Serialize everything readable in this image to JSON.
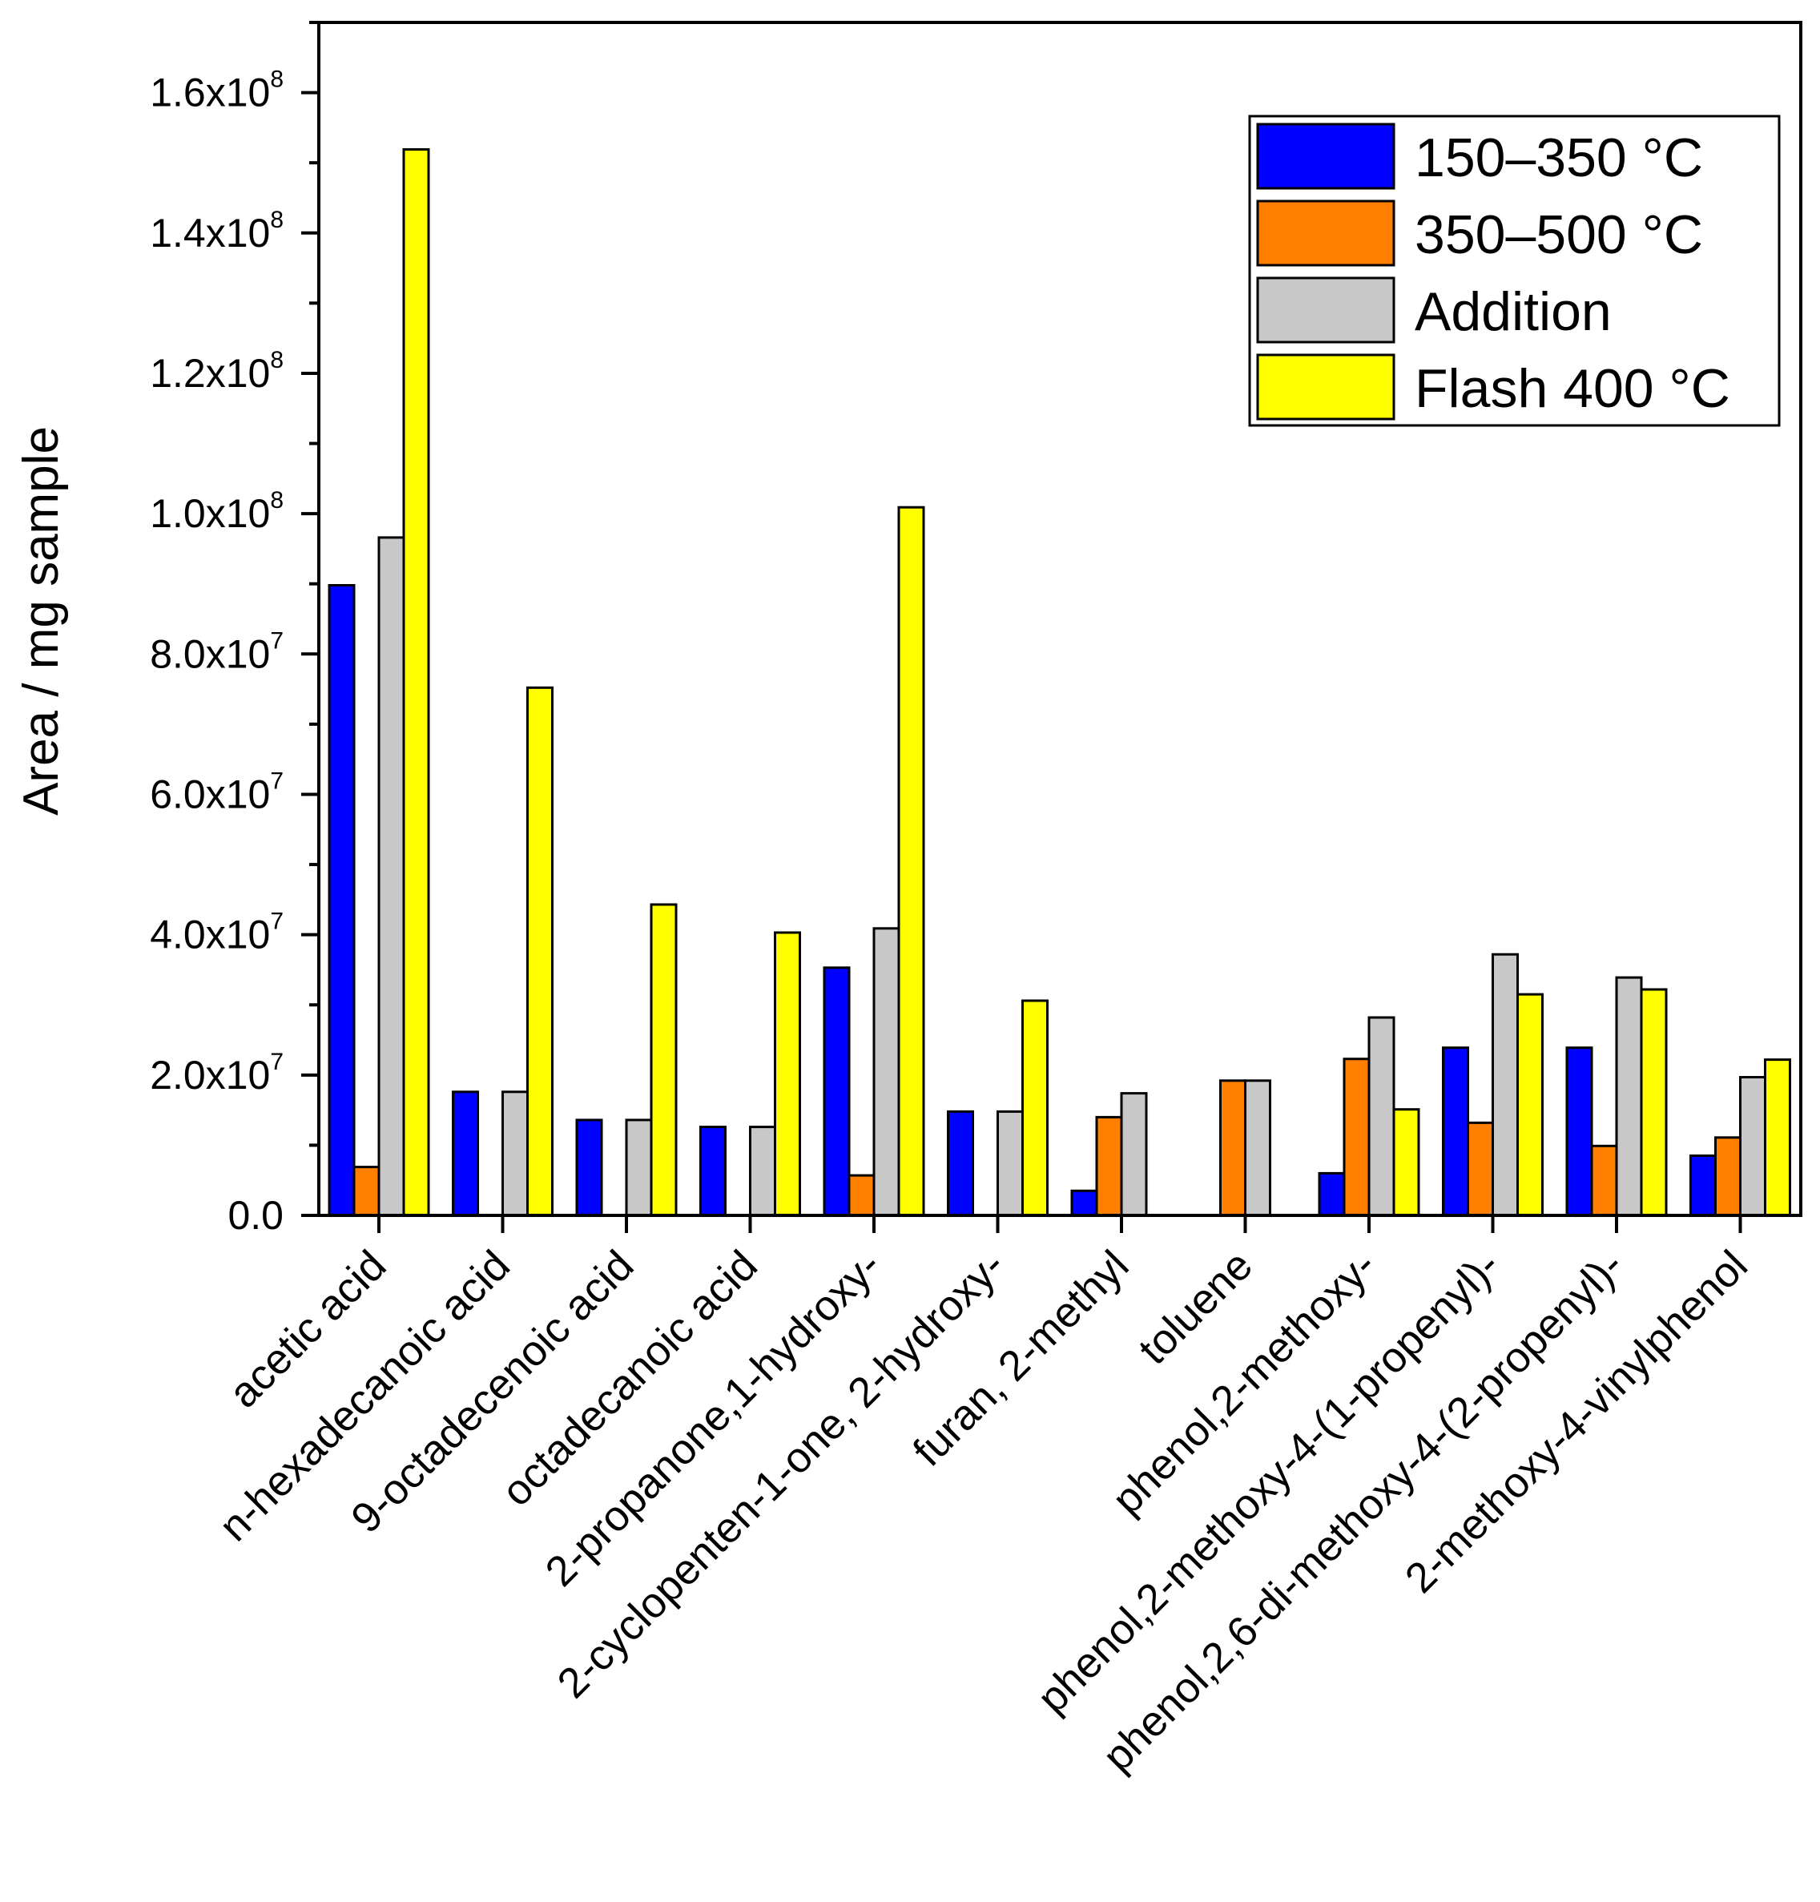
{
  "chart_data": {
    "type": "bar",
    "title": "",
    "xlabel": "",
    "ylabel": "Area / mg sample",
    "ylim": [
      0,
      170000000
    ],
    "categories": [
      "acetic acid",
      "n-hexadecanoic acid",
      "9-octadecenoic acid",
      "octadecanoic acid",
      "2-propanone,1-hydroxy-",
      "2-cyclopenten-1-one, 2-hydroxy-",
      "furan, 2-methyl",
      "toluene",
      "phenol,2-methoxy-",
      "phenol,2-methoxy-4-(1-propenyl)-",
      "phenol,2,6-di-methoxy-4-(2-propenyl)-",
      "2-methoxy-4-vinylphenol"
    ],
    "series": [
      {
        "name": "150–350 °C",
        "color": "#0000FF",
        "values": [
          89800000,
          17600000,
          13600000,
          12600000,
          35300000,
          14800000,
          3500000,
          0,
          6000000,
          23900000,
          23900000,
          8500000
        ]
      },
      {
        "name": "350–500 °C",
        "color": "#FF8000",
        "values": [
          6900000,
          0,
          0,
          0,
          5700000,
          0,
          14000000,
          19200000,
          22300000,
          13200000,
          9900000,
          11100000
        ]
      },
      {
        "name": "Addition",
        "color": "#C8C8C8",
        "values": [
          96600000,
          17600000,
          13600000,
          12600000,
          40900000,
          14800000,
          17400000,
          19200000,
          28200000,
          37200000,
          33900000,
          19700000
        ]
      },
      {
        "name": "Flash 400 °C",
        "color": "#FFFF00",
        "values": [
          151900000,
          75200000,
          44300000,
          40300000,
          100900000,
          30600000,
          0,
          0,
          15100000,
          31500000,
          32200000,
          22200000
        ]
      }
    ],
    "yticks": [
      {
        "value": 0,
        "label": "0.0",
        "exp": ""
      },
      {
        "value": 20000000,
        "label": "2.0x10",
        "exp": "7"
      },
      {
        "value": 40000000,
        "label": "4.0x10",
        "exp": "7"
      },
      {
        "value": 60000000,
        "label": "6.0x10",
        "exp": "7"
      },
      {
        "value": 80000000,
        "label": "8.0x10",
        "exp": "7"
      },
      {
        "value": 100000000,
        "label": "1.0x10",
        "exp": "8"
      },
      {
        "value": 120000000,
        "label": "1.2x10",
        "exp": "8"
      },
      {
        "value": 140000000,
        "label": "1.4x10",
        "exp": "8"
      },
      {
        "value": 160000000,
        "label": "1.6x10",
        "exp": "8"
      }
    ],
    "legend": {
      "position": "top-right",
      "entries": [
        "150–350 °C",
        "350–500 °C",
        "Addition",
        "Flash 400 °C"
      ]
    },
    "grid": false
  }
}
